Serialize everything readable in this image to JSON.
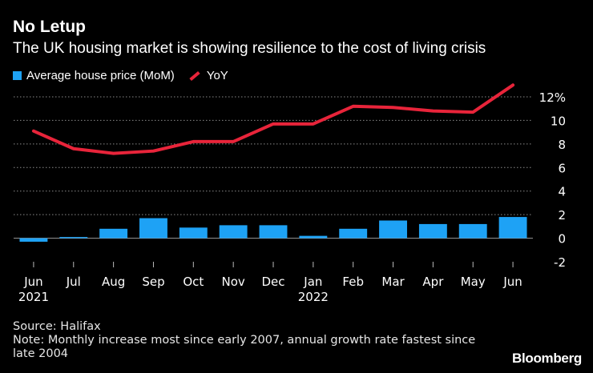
{
  "header": {
    "title": "No Letup",
    "subtitle": "The UK housing market is showing resilience to the cost of living crisis"
  },
  "legend": {
    "bar_label": "Average house price (MoM)",
    "line_label": "YoY"
  },
  "colors": {
    "bar": "#1ea2f5",
    "line": "#e8243a",
    "grid": "#8a8a8a",
    "background": "#000000"
  },
  "footer": {
    "source": "Source: Halifax",
    "note_line1": "Note: Monthly increase most since early 2007, annual growth rate fastest since",
    "note_line2": "late 2004"
  },
  "brand": "Bloomberg",
  "chart_data": {
    "type": "bar",
    "title": "No Letup",
    "categories": [
      "Jun",
      "Jul",
      "Aug",
      "Sep",
      "Oct",
      "Nov",
      "Dec",
      "Jan",
      "Feb",
      "Mar",
      "Apr",
      "May",
      "Jun"
    ],
    "category_sublabels": [
      "2021",
      "",
      "",
      "",
      "",
      "",
      "",
      "2022",
      "",
      "",
      "",
      "",
      ""
    ],
    "series": [
      {
        "name": "Average house price (MoM)",
        "type": "bar",
        "values": [
          -0.3,
          0.1,
          0.8,
          1.7,
          0.9,
          1.1,
          1.1,
          0.2,
          0.8,
          1.5,
          1.2,
          1.2,
          1.8
        ]
      },
      {
        "name": "YoY",
        "type": "line",
        "values": [
          9.1,
          7.6,
          7.2,
          7.4,
          8.2,
          8.2,
          9.7,
          9.7,
          11.2,
          11.1,
          10.8,
          10.7,
          13.0
        ]
      }
    ],
    "yticks": [
      "12%",
      "10",
      "8",
      "6",
      "4",
      "2",
      "0",
      "-2"
    ],
    "ytick_values": [
      12,
      10,
      8,
      6,
      4,
      2,
      0,
      -2
    ],
    "ylim": [
      -2,
      12
    ],
    "xlabel": "",
    "ylabel": "",
    "grid": true,
    "y_axis_side": "right"
  }
}
